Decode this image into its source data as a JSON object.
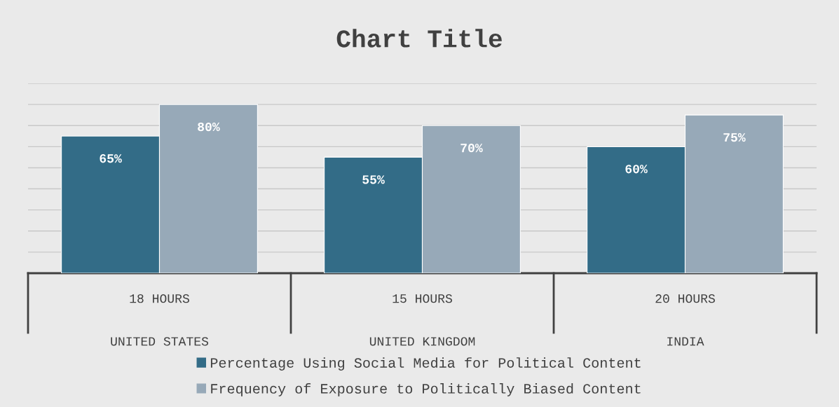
{
  "chart_data": {
    "type": "bar",
    "title": "Chart Title",
    "categories": [
      "18 HOURS\nUNITED STATES",
      "15 HOURS\nUNITED KINGDOM",
      "20 HOURS\nINDIA"
    ],
    "series": [
      {
        "name": "Percentage Using Social Media for Political Content",
        "color": "#336c87",
        "values": [
          65,
          55,
          60
        ],
        "value_labels": [
          "65%",
          "55%",
          "60%"
        ]
      },
      {
        "name": "Frequency of Exposure to Politically Biased Content",
        "color": "#97a9b8",
        "values": [
          80,
          70,
          75
        ],
        "value_labels": [
          "80%",
          "70%",
          "75%"
        ]
      }
    ],
    "ylim": [
      0,
      90
    ],
    "yticks": [
      {
        "value": 0,
        "label": null
      },
      {
        "value": 10,
        "label": null
      },
      {
        "value": 20,
        "label": null
      },
      {
        "value": 30,
        "label": null
      },
      {
        "value": 40,
        "label": null
      },
      {
        "value": 50,
        "label": null
      },
      {
        "value": 60,
        "label": null
      },
      {
        "value": 70,
        "label": null
      },
      {
        "value": 80,
        "label": null
      },
      {
        "value": 90,
        "label": null
      }
    ],
    "tick_labels": "x",
    "grid": "y",
    "legend": "bottom"
  }
}
